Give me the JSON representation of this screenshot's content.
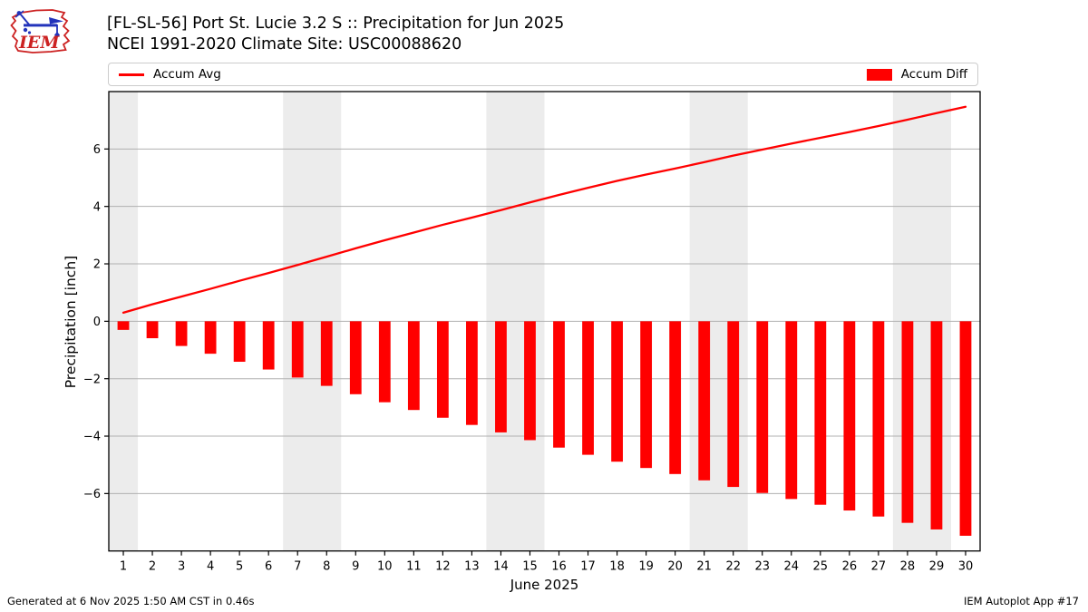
{
  "header": {
    "title_line1": "[FL-SL-56] Port St. Lucie 3.2 S :: Precipitation for Jun 2025",
    "title_line2": "NCEI 1991-2020 Climate Site: USC00088620",
    "logo_text": "IEM"
  },
  "legend": {
    "line_label": "Accum Avg",
    "bar_label": "Accum Diff"
  },
  "footer": {
    "left": "Generated at 6 Nov 2025 1:50 AM CST in 0.46s",
    "right": "IEM Autoplot App #17"
  },
  "colors": {
    "accent_red": "#ff0000",
    "weekend_band": "#ececec",
    "gridline": "#b0b0b0",
    "axis": "#000000",
    "legend_border": "#cccccc",
    "logo_red": "#cc2222",
    "logo_blue": "#2233bb"
  },
  "chart_data": {
    "type": "line+bar",
    "title": "[FL-SL-56] Port St. Lucie 3.2 S :: Precipitation for Jun 2025",
    "subtitle": "NCEI 1991-2020 Climate Site: USC00088620",
    "xlabel": "June 2025",
    "ylabel": "Precipitation [inch]",
    "x": [
      1,
      2,
      3,
      4,
      5,
      6,
      7,
      8,
      9,
      10,
      11,
      12,
      13,
      14,
      15,
      16,
      17,
      18,
      19,
      20,
      21,
      22,
      23,
      24,
      25,
      26,
      27,
      28,
      29,
      30
    ],
    "series": [
      {
        "name": "Accum Avg",
        "type": "line",
        "color": "#ff0000",
        "values": [
          0.3,
          0.59,
          0.86,
          1.13,
          1.41,
          1.68,
          1.96,
          2.25,
          2.54,
          2.82,
          3.09,
          3.36,
          3.61,
          3.87,
          4.14,
          4.4,
          4.65,
          4.89,
          5.11,
          5.32,
          5.54,
          5.77,
          5.98,
          6.19,
          6.39,
          6.59,
          6.8,
          7.02,
          7.25,
          7.47
        ]
      },
      {
        "name": "Accum Diff",
        "type": "bar",
        "color": "#ff0000",
        "values": [
          -0.3,
          -0.59,
          -0.86,
          -1.13,
          -1.41,
          -1.68,
          -1.96,
          -2.25,
          -2.54,
          -2.82,
          -3.09,
          -3.36,
          -3.61,
          -3.87,
          -4.14,
          -4.4,
          -4.65,
          -4.89,
          -5.11,
          -5.32,
          -5.54,
          -5.77,
          -5.98,
          -6.19,
          -6.39,
          -6.59,
          -6.8,
          -7.02,
          -7.25,
          -7.47
        ]
      }
    ],
    "xlim": [
      0.5,
      30.5
    ],
    "ylim": [
      -8,
      8
    ],
    "yticks": [
      -6,
      -4,
      -2,
      0,
      2,
      4,
      6
    ],
    "grid": true,
    "legend_position": "top",
    "weekend_bands": [
      [
        0.5,
        1.5
      ],
      [
        6.5,
        8.5
      ],
      [
        13.5,
        15.5
      ],
      [
        20.5,
        22.5
      ],
      [
        27.5,
        29.5
      ]
    ]
  }
}
